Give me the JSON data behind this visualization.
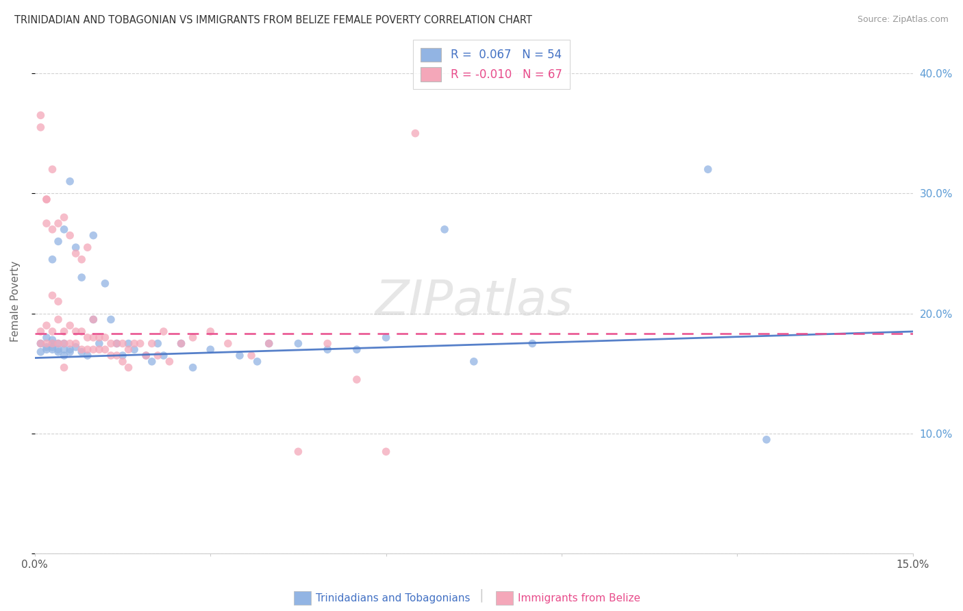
{
  "title": "TRINIDADIAN AND TOBAGONIAN VS IMMIGRANTS FROM BELIZE FEMALE POVERTY CORRELATION CHART",
  "source": "Source: ZipAtlas.com",
  "ylabel": "Female Poverty",
  "xlim": [
    0.0,
    0.15
  ],
  "ylim": [
    0.0,
    0.42
  ],
  "color_blue": "#92B4E3",
  "color_pink": "#F4A7B9",
  "line_color_blue": "#4472C4",
  "line_color_pink": "#E84C8B",
  "watermark": "ZIPatlas",
  "background_color": "#FFFFFF",
  "grid_color": "#CCCCCC",
  "blue_x": [
    0.001,
    0.001,
    0.002,
    0.002,
    0.002,
    0.003,
    0.003,
    0.003,
    0.003,
    0.003,
    0.004,
    0.004,
    0.004,
    0.004,
    0.005,
    0.005,
    0.005,
    0.005,
    0.006,
    0.006,
    0.006,
    0.007,
    0.007,
    0.008,
    0.008,
    0.009,
    0.01,
    0.01,
    0.011,
    0.012,
    0.013,
    0.014,
    0.015,
    0.016,
    0.017,
    0.019,
    0.02,
    0.021,
    0.022,
    0.025,
    0.027,
    0.03,
    0.035,
    0.038,
    0.04,
    0.045,
    0.05,
    0.055,
    0.06,
    0.07,
    0.075,
    0.085,
    0.115,
    0.125
  ],
  "blue_y": [
    0.168,
    0.175,
    0.17,
    0.172,
    0.18,
    0.17,
    0.172,
    0.175,
    0.178,
    0.245,
    0.17,
    0.168,
    0.175,
    0.26,
    0.165,
    0.17,
    0.175,
    0.27,
    0.168,
    0.17,
    0.31,
    0.172,
    0.255,
    0.168,
    0.23,
    0.165,
    0.195,
    0.265,
    0.175,
    0.225,
    0.195,
    0.175,
    0.165,
    0.175,
    0.17,
    0.165,
    0.16,
    0.175,
    0.165,
    0.175,
    0.155,
    0.17,
    0.165,
    0.16,
    0.175,
    0.175,
    0.17,
    0.17,
    0.18,
    0.27,
    0.16,
    0.175,
    0.32,
    0.095
  ],
  "pink_x": [
    0.001,
    0.001,
    0.001,
    0.002,
    0.002,
    0.002,
    0.002,
    0.003,
    0.003,
    0.003,
    0.003,
    0.004,
    0.004,
    0.004,
    0.005,
    0.005,
    0.005,
    0.005,
    0.006,
    0.006,
    0.006,
    0.007,
    0.007,
    0.007,
    0.008,
    0.008,
    0.008,
    0.009,
    0.009,
    0.009,
    0.01,
    0.01,
    0.01,
    0.011,
    0.011,
    0.012,
    0.012,
    0.013,
    0.013,
    0.014,
    0.014,
    0.015,
    0.015,
    0.016,
    0.016,
    0.017,
    0.018,
    0.019,
    0.02,
    0.021,
    0.022,
    0.023,
    0.025,
    0.027,
    0.03,
    0.033,
    0.037,
    0.04,
    0.045,
    0.05,
    0.055,
    0.06,
    0.065,
    0.001,
    0.002,
    0.003,
    0.004
  ],
  "pink_y": [
    0.355,
    0.175,
    0.185,
    0.295,
    0.275,
    0.19,
    0.175,
    0.32,
    0.27,
    0.185,
    0.175,
    0.275,
    0.195,
    0.175,
    0.28,
    0.185,
    0.175,
    0.155,
    0.265,
    0.19,
    0.175,
    0.25,
    0.185,
    0.175,
    0.245,
    0.185,
    0.17,
    0.255,
    0.18,
    0.17,
    0.195,
    0.18,
    0.17,
    0.18,
    0.17,
    0.18,
    0.17,
    0.175,
    0.165,
    0.175,
    0.165,
    0.175,
    0.16,
    0.17,
    0.155,
    0.175,
    0.175,
    0.165,
    0.175,
    0.165,
    0.185,
    0.16,
    0.175,
    0.18,
    0.185,
    0.175,
    0.165,
    0.175,
    0.085,
    0.175,
    0.145,
    0.085,
    0.35,
    0.365,
    0.295,
    0.215,
    0.21
  ],
  "blue_trend_x0": 0.0,
  "blue_trend_y0": 0.163,
  "blue_trend_x1": 0.15,
  "blue_trend_y1": 0.185,
  "pink_trend_x0": 0.0,
  "pink_trend_y0": 0.183,
  "pink_trend_x1": 0.15,
  "pink_trend_y1": 0.183
}
